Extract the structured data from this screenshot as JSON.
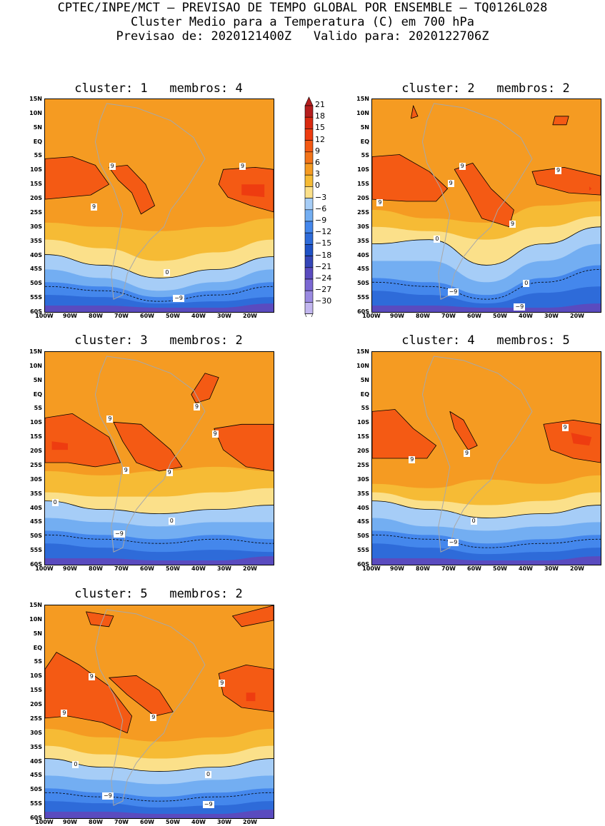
{
  "header": {
    "line1": "CPTEC/INPE/MCT – PREVISAO DE TEMPO GLOBAL POR ENSEMBLE – TQ0126L028",
    "line2": "Cluster Medio para a Temperatura (C) em 700 hPa",
    "line3": "Previsao de: 2020121400Z   Valido para: 2020122706Z"
  },
  "lat_labels": [
    "15N",
    "10N",
    "5N",
    "EQ",
    "5S",
    "10S",
    "15S",
    "20S",
    "25S",
    "30S",
    "35S",
    "40S",
    "45S",
    "50S",
    "55S",
    "60S"
  ],
  "lon_labels": [
    "100W",
    "90W",
    "80W",
    "70W",
    "60W",
    "50W",
    "40W",
    "30W",
    "20W"
  ],
  "colorbar": {
    "labels": [
      "21",
      "18",
      "15",
      "12",
      "9",
      "6",
      "3",
      "0",
      "-3",
      "-6",
      "-9",
      "-12",
      "-15",
      "-18",
      "-21",
      "-24",
      "-27",
      "-30"
    ],
    "colors": [
      "#b51e1e",
      "#d92a10",
      "#ee3c10",
      "#f45a14",
      "#f3741a",
      "#f59b22",
      "#f6bb35",
      "#fbe08a",
      "#a6cdf7",
      "#73aef2",
      "#4487ec",
      "#2e6bd9",
      "#1f52c6",
      "#3546b8",
      "#5a4bbf",
      "#7b68d3",
      "#9a8ae1",
      "#c2b6ef"
    ]
  },
  "maps": [
    {
      "title": "cluster: 1   membros: 4",
      "labels": [
        {
          "t": "9"
        },
        {
          "t": "9"
        },
        {
          "t": "9"
        },
        {
          "t": "0"
        },
        {
          "t": "−9"
        }
      ]
    },
    {
      "title": "cluster: 2   membros: 2",
      "labels": [
        {
          "t": "9"
        },
        {
          "t": "9"
        },
        {
          "t": "9"
        },
        {
          "t": "9"
        },
        {
          "t": "9"
        },
        {
          "t": "0"
        },
        {
          "t": "0"
        },
        {
          "t": "−9"
        },
        {
          "t": "−9"
        }
      ]
    },
    {
      "title": "cluster: 3   membros: 2",
      "labels": [
        {
          "t": "9"
        },
        {
          "t": "9"
        },
        {
          "t": "9"
        },
        {
          "t": "9"
        },
        {
          "t": "9"
        },
        {
          "t": "0"
        },
        {
          "t": "0"
        },
        {
          "t": "−9"
        }
      ]
    },
    {
      "title": "cluster: 4   membros: 5",
      "labels": [
        {
          "t": "9"
        },
        {
          "t": "9"
        },
        {
          "t": "9"
        },
        {
          "t": "0"
        },
        {
          "t": "−9"
        }
      ]
    },
    {
      "title": "cluster: 5   membros: 2",
      "labels": [
        {
          "t": "9"
        },
        {
          "t": "9"
        },
        {
          "t": "9"
        },
        {
          "t": "9"
        },
        {
          "t": "0"
        },
        {
          "t": "0"
        },
        {
          "t": "−9"
        },
        {
          "t": "−9"
        }
      ]
    }
  ]
}
